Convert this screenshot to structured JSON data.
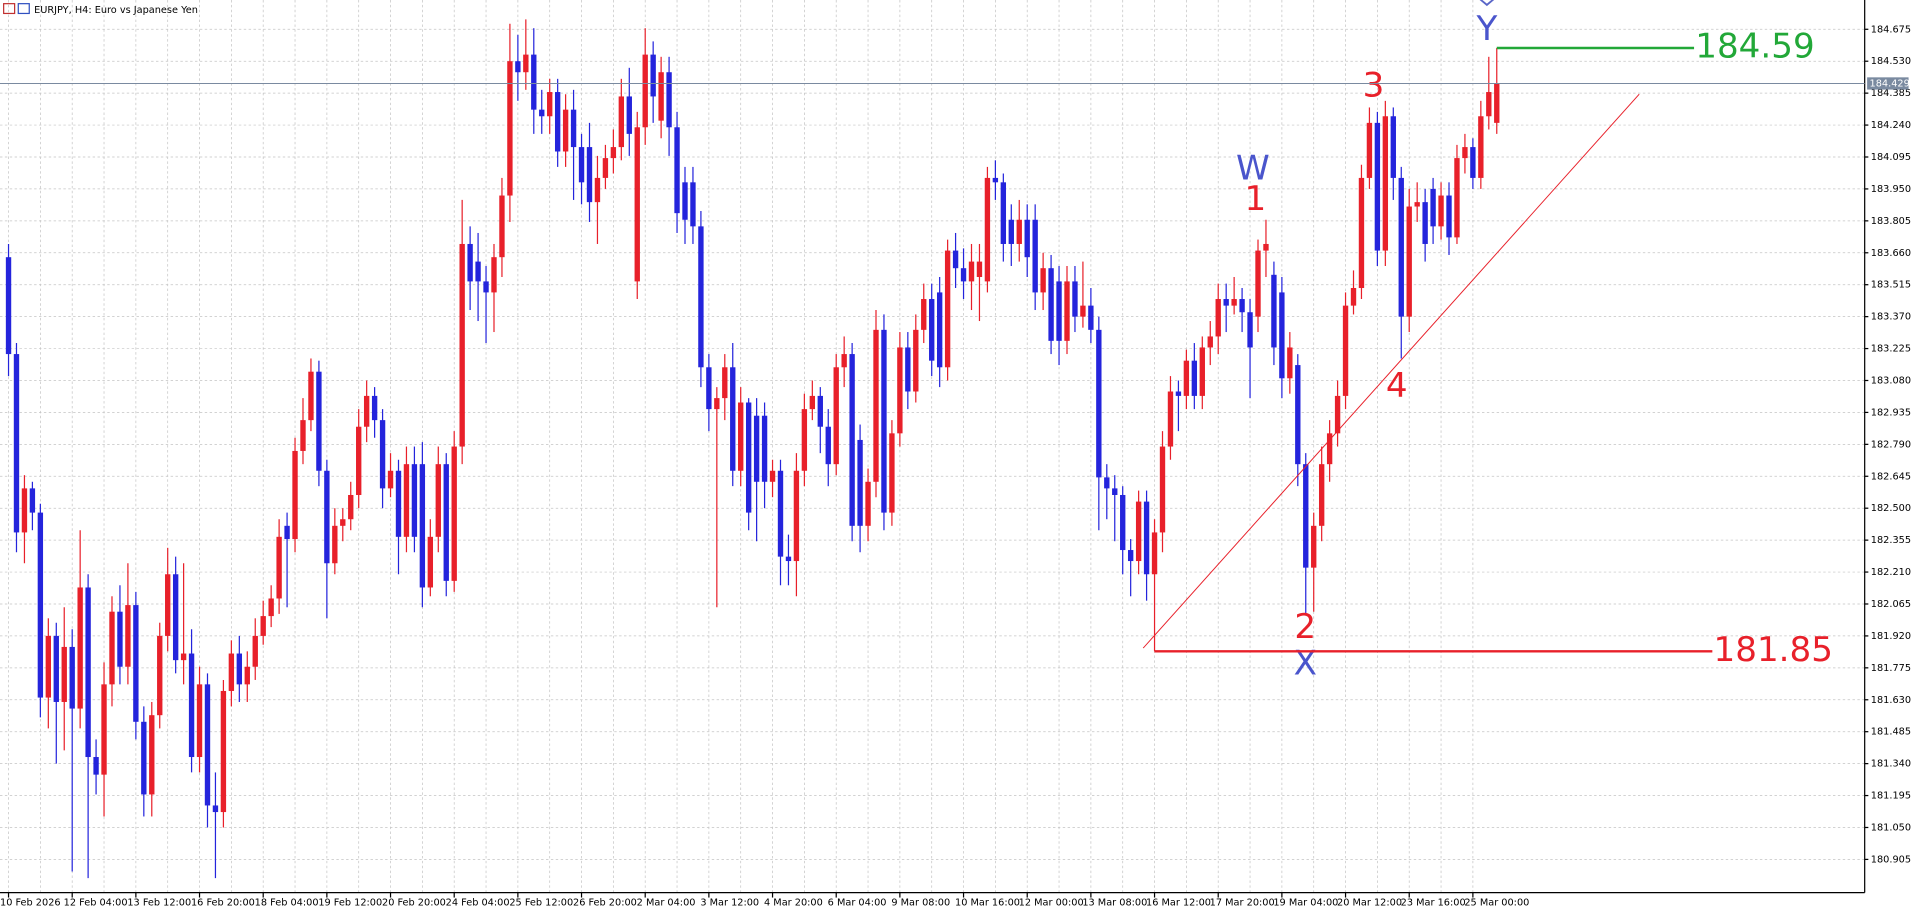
{
  "chart_data": {
    "type": "candlestick",
    "title": "EURJPY, H4: Euro vs Japanese Yen",
    "up_color": "#e8202a",
    "down_color": "#2424dc",
    "grid": true,
    "ylim": [
      180.754,
      184.808
    ],
    "yticks": [
      184.675,
      {
        "value": 184.53,
        "label": "184.530"
      },
      184.385,
      {
        "value": 184.24,
        "label": "184.240"
      },
      184.095,
      {
        "value": 183.95,
        "label": "183.950"
      },
      183.805,
      {
        "value": 183.66,
        "label": "183.660"
      },
      183.515,
      {
        "value": 183.37,
        "label": "183.370"
      },
      183.225,
      {
        "value": 183.08,
        "label": "183.080"
      },
      182.935,
      {
        "value": 182.79,
        "label": "182.790"
      },
      182.645,
      {
        "value": 182.5,
        "label": "182.500"
      },
      182.355,
      {
        "value": 182.21,
        "label": "182.210"
      },
      182.065,
      {
        "value": 181.92,
        "label": "181.920"
      },
      181.775,
      {
        "value": 181.63,
        "label": "181.630"
      },
      181.485,
      {
        "value": 181.34,
        "label": "181.340"
      },
      181.195,
      {
        "value": 181.05,
        "label": "181.050"
      },
      180.905
    ],
    "current_price": 184.429,
    "levels": [
      {
        "value": 184.59,
        "color": "#22a838"
      },
      {
        "value": 181.85,
        "color": "#e8202a"
      }
    ],
    "annotations": [
      "W",
      "1",
      "3",
      "Y",
      "2",
      "X",
      "4"
    ],
    "categories": [
      "10 Feb 2026",
      null,
      null,
      null,
      null,
      null,
      null,
      null,
      "12 Feb 04:00",
      null,
      null,
      null,
      null,
      null,
      null,
      null,
      "13 Feb 12:00",
      null,
      null,
      null,
      null,
      null,
      null,
      null,
      "16 Feb 20:00",
      null,
      null,
      null,
      null,
      null,
      null,
      null,
      "18 Feb 04:00",
      null,
      null,
      null,
      null,
      null,
      null,
      null,
      "19 Feb 12:00",
      null,
      null,
      null,
      null,
      null,
      null,
      null,
      "20 Feb 20:00",
      null,
      null,
      null,
      null,
      null,
      null,
      null,
      "24 Feb 04:00",
      null,
      null,
      null,
      null,
      null,
      null,
      null,
      "25 Feb 12:00",
      null,
      null,
      null,
      null,
      null,
      null,
      null,
      "26 Feb 20:00",
      null,
      null,
      null,
      null,
      null,
      null,
      null,
      "2 Mar 04:00",
      null,
      null,
      null,
      null,
      null,
      null,
      null,
      "3 Mar 12:00",
      null,
      null,
      null,
      null,
      null,
      null,
      null,
      "4 Mar 20:00",
      null,
      null,
      null,
      null,
      null,
      null,
      null,
      "6 Mar 04:00",
      null,
      null,
      null,
      null,
      null,
      null,
      null,
      "9 Mar 08:00",
      null,
      null,
      null,
      null,
      null,
      null,
      null,
      "10 Mar 16:00",
      null,
      null,
      null,
      null,
      null,
      null,
      null,
      "12 Mar 00:00",
      null,
      null,
      null,
      null,
      null,
      null,
      null,
      "13 Mar 08:00",
      null,
      null,
      null,
      null,
      null,
      null,
      null,
      "16 Mar 12:00",
      null,
      null,
      null,
      null,
      null,
      null,
      null,
      "17 Mar 20:00",
      null,
      null,
      null,
      null,
      null,
      null,
      null,
      "19 Mar 04:00",
      null,
      null,
      null,
      null,
      null,
      null,
      null,
      "20 Mar 12:00",
      null,
      null,
      null,
      null,
      null,
      null,
      null,
      "23 Mar 16:00",
      null,
      null,
      null,
      null,
      null,
      null,
      null,
      "25 Mar 00:00",
      null,
      null,
      null
    ],
    "candles": [
      [
        183.64,
        183.7,
        183.1,
        183.2
      ],
      [
        183.2,
        183.25,
        182.3,
        182.39
      ],
      [
        182.39,
        182.65,
        182.25,
        182.59
      ],
      [
        182.59,
        182.62,
        182.4,
        182.48
      ],
      [
        182.48,
        182.52,
        181.55,
        181.64
      ],
      [
        181.64,
        182.0,
        181.5,
        181.92
      ],
      [
        181.92,
        181.98,
        181.34,
        181.62
      ],
      [
        181.62,
        182.05,
        181.4,
        181.87
      ],
      [
        181.87,
        181.95,
        180.85,
        181.59
      ],
      [
        181.59,
        182.4,
        181.5,
        182.14
      ],
      [
        182.14,
        182.2,
        180.82,
        181.37
      ],
      [
        181.37,
        181.45,
        181.2,
        181.29
      ],
      [
        181.29,
        181.8,
        181.1,
        181.7
      ],
      [
        181.7,
        182.1,
        181.6,
        182.03
      ],
      [
        182.03,
        182.15,
        181.7,
        181.78
      ],
      [
        181.78,
        182.25,
        181.7,
        182.06
      ],
      [
        182.06,
        182.12,
        181.45,
        181.53
      ],
      [
        181.53,
        181.6,
        181.1,
        181.2
      ],
      [
        181.2,
        181.62,
        181.1,
        181.56
      ],
      [
        181.56,
        181.98,
        181.5,
        181.92
      ],
      [
        181.92,
        182.32,
        181.85,
        182.2
      ],
      [
        182.2,
        182.28,
        181.75,
        181.81
      ],
      [
        181.81,
        182.25,
        181.7,
        181.84
      ],
      [
        181.84,
        181.95,
        181.3,
        181.37
      ],
      [
        181.37,
        181.78,
        181.3,
        181.7
      ],
      [
        181.7,
        181.75,
        181.05,
        181.15
      ],
      [
        181.15,
        181.3,
        180.82,
        181.12
      ],
      [
        181.12,
        181.72,
        181.05,
        181.67
      ],
      [
        181.67,
        181.9,
        181.6,
        181.84
      ],
      [
        181.84,
        181.92,
        181.62,
        181.7
      ],
      [
        181.7,
        181.85,
        181.62,
        181.78
      ],
      [
        181.78,
        182.0,
        181.72,
        181.92
      ],
      [
        181.92,
        182.08,
        181.88,
        182.01
      ],
      [
        182.01,
        182.15,
        181.96,
        182.09
      ],
      [
        182.09,
        182.45,
        182.02,
        182.37
      ],
      [
        182.42,
        182.48,
        182.05,
        182.36
      ],
      [
        182.36,
        182.82,
        182.3,
        182.76
      ],
      [
        182.76,
        183.0,
        182.7,
        182.9
      ],
      [
        182.9,
        183.18,
        182.85,
        183.12
      ],
      [
        183.12,
        183.17,
        182.6,
        182.67
      ],
      [
        182.67,
        182.72,
        182.0,
        182.25
      ],
      [
        182.25,
        182.5,
        182.2,
        182.42
      ],
      [
        182.42,
        182.5,
        182.35,
        182.45
      ],
      [
        182.45,
        182.62,
        182.4,
        182.56
      ],
      [
        182.56,
        182.95,
        182.5,
        182.87
      ],
      [
        182.87,
        183.08,
        182.8,
        183.01
      ],
      [
        183.01,
        183.05,
        182.82,
        182.9
      ],
      [
        182.9,
        182.95,
        182.5,
        182.59
      ],
      [
        182.59,
        182.75,
        182.55,
        182.67
      ],
      [
        182.67,
        182.72,
        182.2,
        182.37
      ],
      [
        182.37,
        182.78,
        182.3,
        182.7
      ],
      [
        182.7,
        182.78,
        182.3,
        182.37
      ],
      [
        182.7,
        182.8,
        182.05,
        182.14
      ],
      [
        182.14,
        182.45,
        182.1,
        182.37
      ],
      [
        182.37,
        182.78,
        182.3,
        182.7
      ],
      [
        182.7,
        182.75,
        182.1,
        182.17
      ],
      [
        182.17,
        182.85,
        182.12,
        182.78
      ],
      [
        182.78,
        183.9,
        182.7,
        183.7
      ],
      [
        183.7,
        183.78,
        183.4,
        183.53
      ],
      [
        183.62,
        183.75,
        183.35,
        183.53
      ],
      [
        183.53,
        183.6,
        183.25,
        183.48
      ],
      [
        183.48,
        183.7,
        183.3,
        183.64
      ],
      [
        183.64,
        184.0,
        183.55,
        183.92
      ],
      [
        183.92,
        184.7,
        183.8,
        184.53
      ],
      [
        184.53,
        184.65,
        184.35,
        184.48
      ],
      [
        184.48,
        184.72,
        184.4,
        184.56
      ],
      [
        184.56,
        184.68,
        184.2,
        184.31
      ],
      [
        184.31,
        184.4,
        184.2,
        184.28
      ],
      [
        184.28,
        184.45,
        184.2,
        184.39
      ],
      [
        184.39,
        184.45,
        184.05,
        184.12
      ],
      [
        184.12,
        184.38,
        184.05,
        184.31
      ],
      [
        184.31,
        184.4,
        183.9,
        184.14
      ],
      [
        184.14,
        184.2,
        183.88,
        183.98
      ],
      [
        184.14,
        184.25,
        183.8,
        183.89
      ],
      [
        183.89,
        184.1,
        183.7,
        184.0
      ],
      [
        184.0,
        184.15,
        183.95,
        184.09
      ],
      [
        184.09,
        184.22,
        184.02,
        184.14
      ],
      [
        184.14,
        184.45,
        184.08,
        184.37
      ],
      [
        184.37,
        184.5,
        184.1,
        184.2
      ],
      [
        183.53,
        184.3,
        183.45,
        184.23
      ],
      [
        184.23,
        184.68,
        184.15,
        184.56
      ],
      [
        184.56,
        184.62,
        184.25,
        184.37
      ],
      [
        184.26,
        184.55,
        184.18,
        184.48
      ],
      [
        184.48,
        184.55,
        184.1,
        184.23
      ],
      [
        184.23,
        184.3,
        183.75,
        183.84
      ],
      [
        183.98,
        184.05,
        183.7,
        183.81
      ],
      [
        183.98,
        184.05,
        183.7,
        183.78
      ],
      [
        183.78,
        183.85,
        183.05,
        183.14
      ],
      [
        183.14,
        183.2,
        182.85,
        182.95
      ],
      [
        182.95,
        183.05,
        182.05,
        183.0
      ],
      [
        183.0,
        183.2,
        182.9,
        183.14
      ],
      [
        183.14,
        183.25,
        182.6,
        182.67
      ],
      [
        182.67,
        183.05,
        182.6,
        182.98
      ],
      [
        182.98,
        183.0,
        182.4,
        182.48
      ],
      [
        182.92,
        183.0,
        182.35,
        182.62
      ],
      [
        182.92,
        182.98,
        182.5,
        182.62
      ],
      [
        182.62,
        182.72,
        182.55,
        182.67
      ],
      [
        182.67,
        182.72,
        182.15,
        182.28
      ],
      [
        182.28,
        182.38,
        182.15,
        182.26
      ],
      [
        182.26,
        182.75,
        182.1,
        182.67
      ],
      [
        182.67,
        183.02,
        182.6,
        182.95
      ],
      [
        182.95,
        183.08,
        182.9,
        183.01
      ],
      [
        183.01,
        183.05,
        182.75,
        182.87
      ],
      [
        182.87,
        182.95,
        182.6,
        182.7
      ],
      [
        182.7,
        183.2,
        182.65,
        183.14
      ],
      [
        183.14,
        183.28,
        183.05,
        183.2
      ],
      [
        183.2,
        183.25,
        182.35,
        182.42
      ],
      [
        182.81,
        182.88,
        182.3,
        182.42
      ],
      [
        182.42,
        182.68,
        182.35,
        182.62
      ],
      [
        182.62,
        183.4,
        182.55,
        183.31
      ],
      [
        183.31,
        183.38,
        182.4,
        182.48
      ],
      [
        182.48,
        182.9,
        182.42,
        182.84
      ],
      [
        182.84,
        183.3,
        182.78,
        183.23
      ],
      [
        183.23,
        183.3,
        182.95,
        183.03
      ],
      [
        183.03,
        183.38,
        182.98,
        183.31
      ],
      [
        183.31,
        183.52,
        183.25,
        183.45
      ],
      [
        183.45,
        183.52,
        183.1,
        183.17
      ],
      [
        183.48,
        183.55,
        183.05,
        183.14
      ],
      [
        183.14,
        183.72,
        183.08,
        183.67
      ],
      [
        183.67,
        183.75,
        183.5,
        183.59
      ],
      [
        183.59,
        183.68,
        183.45,
        183.53
      ],
      [
        183.53,
        183.7,
        183.4,
        183.62
      ],
      [
        183.55,
        183.7,
        183.35,
        183.62
      ],
      [
        183.53,
        184.05,
        183.48,
        184.0
      ],
      [
        184.0,
        184.08,
        183.9,
        183.98
      ],
      [
        183.98,
        184.02,
        183.62,
        183.7
      ],
      [
        183.81,
        183.88,
        183.6,
        183.7
      ],
      [
        183.7,
        183.9,
        183.62,
        183.81
      ],
      [
        183.81,
        183.88,
        183.55,
        183.64
      ],
      [
        183.81,
        183.88,
        183.4,
        183.48
      ],
      [
        183.48,
        183.66,
        183.4,
        183.59
      ],
      [
        183.59,
        183.65,
        183.2,
        183.26
      ],
      [
        183.53,
        183.6,
        183.15,
        183.26
      ],
      [
        183.26,
        183.6,
        183.2,
        183.53
      ],
      [
        183.53,
        183.6,
        183.3,
        183.37
      ],
      [
        183.37,
        183.62,
        183.32,
        183.42
      ],
      [
        183.42,
        183.5,
        183.25,
        183.31
      ],
      [
        183.31,
        183.37,
        182.4,
        182.64
      ],
      [
        182.64,
        182.7,
        182.45,
        182.59
      ],
      [
        182.59,
        182.65,
        182.35,
        182.56
      ],
      [
        182.56,
        182.6,
        182.2,
        182.31
      ],
      [
        182.31,
        182.36,
        182.1,
        182.26
      ],
      [
        182.26,
        182.58,
        182.2,
        182.53
      ],
      [
        182.53,
        182.58,
        182.08,
        182.2
      ],
      [
        182.2,
        182.45,
        181.85,
        182.39
      ],
      [
        182.39,
        182.85,
        182.3,
        182.78
      ],
      [
        182.78,
        183.1,
        182.72,
        183.03
      ],
      [
        183.03,
        183.08,
        182.85,
        183.01
      ],
      [
        183.01,
        183.22,
        182.95,
        183.17
      ],
      [
        183.17,
        183.25,
        182.95,
        183.01
      ],
      [
        183.01,
        183.28,
        182.95,
        183.23
      ],
      [
        183.23,
        183.35,
        183.15,
        183.28
      ],
      [
        183.28,
        183.52,
        183.2,
        183.45
      ],
      [
        183.45,
        183.52,
        183.3,
        183.42
      ],
      [
        183.42,
        183.55,
        183.38,
        183.45
      ],
      [
        183.45,
        183.5,
        183.3,
        183.39
      ],
      [
        183.39,
        183.45,
        183.0,
        183.23
      ],
      [
        183.37,
        183.72,
        183.3,
        183.67
      ],
      [
        183.67,
        183.81,
        183.55,
        183.7
      ],
      [
        183.56,
        183.62,
        183.15,
        183.23
      ],
      [
        183.48,
        183.55,
        183.0,
        183.09
      ],
      [
        183.09,
        183.3,
        183.02,
        183.23
      ],
      [
        183.15,
        183.2,
        182.6,
        182.7
      ],
      [
        182.7,
        182.75,
        182.02,
        182.23
      ],
      [
        182.23,
        182.48,
        182.03,
        182.42
      ],
      [
        182.42,
        182.78,
        182.35,
        182.7
      ],
      [
        182.7,
        182.9,
        182.62,
        182.84
      ],
      [
        182.84,
        183.08,
        182.78,
        183.01
      ],
      [
        183.01,
        183.48,
        182.95,
        183.42
      ],
      [
        183.42,
        183.58,
        183.38,
        183.5
      ],
      [
        183.5,
        184.06,
        183.45,
        184.0
      ],
      [
        184.0,
        184.32,
        183.95,
        184.25
      ],
      [
        184.25,
        184.3,
        183.6,
        183.67
      ],
      [
        183.67,
        184.35,
        183.6,
        184.28
      ],
      [
        184.28,
        184.32,
        183.9,
        184.0
      ],
      [
        184.0,
        184.05,
        183.18,
        183.37
      ],
      [
        183.37,
        183.95,
        183.3,
        183.87
      ],
      [
        183.87,
        183.98,
        183.8,
        183.89
      ],
      [
        183.89,
        183.95,
        183.62,
        183.7
      ],
      [
        183.95,
        184.0,
        183.7,
        183.78
      ],
      [
        183.78,
        183.98,
        183.72,
        183.92
      ],
      [
        183.92,
        183.98,
        183.65,
        183.73
      ],
      [
        183.73,
        184.15,
        183.7,
        184.09
      ],
      [
        184.09,
        184.2,
        184.02,
        184.14
      ],
      [
        184.14,
        184.18,
        183.95,
        184.0
      ],
      [
        184.0,
        184.35,
        183.95,
        184.28
      ],
      [
        184.28,
        184.55,
        184.22,
        184.39
      ],
      [
        184.25,
        184.59,
        184.2,
        184.43
      ]
    ]
  }
}
